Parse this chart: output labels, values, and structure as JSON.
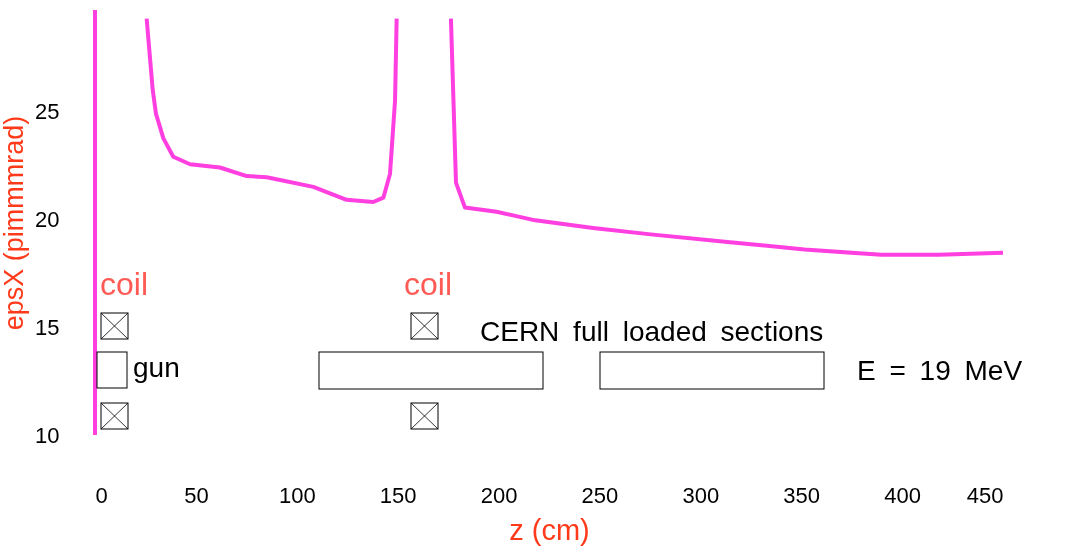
{
  "chart_data": {
    "type": "line",
    "xlabel": "z (cm)",
    "ylabel": "epsX (pimmmrad)",
    "x": [
      25.6,
      28.6,
      30.2,
      33.9,
      38.8,
      47.1,
      61.9,
      75.2,
      85.1,
      108.2,
      124.7,
      137.9,
      142.9,
      146.2,
      148.7,
      149.5,
      null,
      176.4,
      178.9,
      183.3,
      199,
      218.2,
      246.8,
      275.4,
      313.5,
      351.6,
      389.7,
      418.2,
      450
    ],
    "series": [
      {
        "color": "#ff3fe0",
        "values": [
          29.3,
          26.0,
          24.9,
          23.75,
          22.9,
          22.55,
          22.4,
          22.0,
          21.95,
          21.5,
          20.9,
          20.8,
          21.0,
          22.1,
          25.5,
          29.3,
          null,
          29.3,
          21.7,
          20.55,
          20.35,
          19.95,
          19.6,
          19.3,
          18.95,
          18.6,
          18.35,
          18.35,
          18.45
        ]
      }
    ],
    "ref_lines": [
      {
        "axis": "x",
        "value": 0,
        "color": "#ff3fe0"
      }
    ],
    "xlim": [
      0,
      450
    ],
    "xticks": [
      0,
      50,
      100,
      150,
      200,
      250,
      300,
      350,
      400,
      450
    ],
    "ylim": [
      10,
      29.7
    ],
    "yticks": [
      10,
      15,
      20,
      25
    ],
    "annotations": [
      "coil",
      "coil",
      "CERN full loaded sections",
      "gun",
      "E = 19 MeV"
    ]
  }
}
